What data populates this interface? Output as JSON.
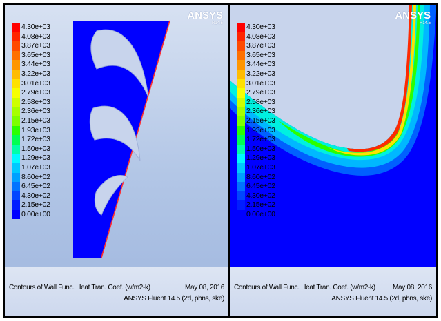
{
  "brand": {
    "name": "ANSYS",
    "version": "R14.5"
  },
  "legend_values": [
    "4.30e+03",
    "4.08e+03",
    "3.87e+03",
    "3.65e+03",
    "3.44e+03",
    "3.22e+03",
    "3.01e+03",
    "2.79e+03",
    "2.58e+03",
    "2.36e+03",
    "2.15e+03",
    "1.93e+03",
    "1.72e+03",
    "1.50e+03",
    "1.29e+03",
    "1.07e+03",
    "8.60e+02",
    "6.45e+02",
    "4.30e+02",
    "2.15e+02",
    "0.00e+00"
  ],
  "legend_colors": [
    "#ff0000",
    "#ff2400",
    "#ff4a00",
    "#ff7000",
    "#ff9600",
    "#ffbc00",
    "#ffe100",
    "#f6ff00",
    "#ceff00",
    "#a6ff00",
    "#7dff00",
    "#2bff00",
    "#00ff52",
    "#00ffa9",
    "#00fbff",
    "#00c9ff",
    "#00a0ff",
    "#0073ff",
    "#0046ff",
    "#001dff",
    "#0000ff"
  ],
  "panels": [
    {
      "caption_title": "Contours of Wall Func. Heat Tran. Coef. (w/m2-k)",
      "caption_date": "May 08, 2016",
      "caption_sub": "ANSYS Fluent 14.5 (2d, pbns, ske)"
    },
    {
      "caption_title": "Contours of Wall Func. Heat Tran. Coef. (w/m2-k)",
      "caption_date": "May 08, 2016",
      "caption_sub": "ANSYS Fluent 14.5 (2d, pbns, ske)"
    }
  ]
}
